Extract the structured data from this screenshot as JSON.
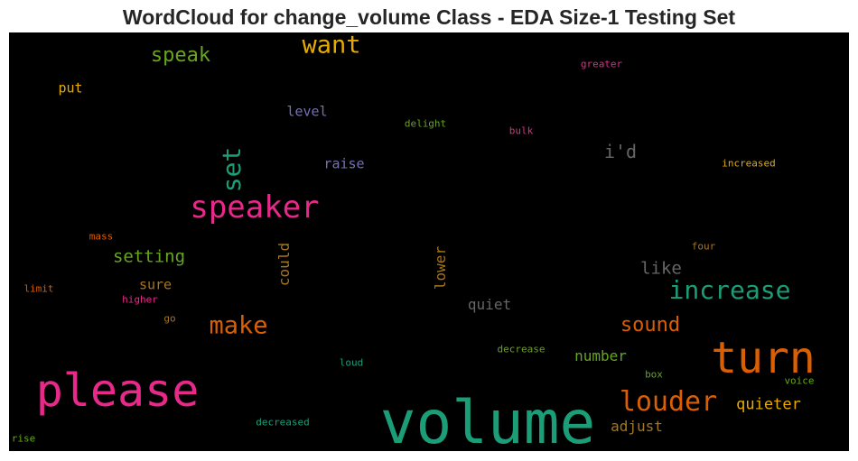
{
  "chart_data": {
    "type": "wordcloud",
    "title": "WordCloud for change_volume Class - EDA Size-1 Testing Set",
    "background": "#000000",
    "colormap": "Dark2",
    "words": [
      {
        "text": "volume",
        "weight": 1.0,
        "color": "#1b9e77",
        "orientation": "horizontal"
      },
      {
        "text": "please",
        "weight": 0.75,
        "color": "#e7298a",
        "orientation": "horizontal"
      },
      {
        "text": "turn",
        "weight": 0.72,
        "color": "#d95f02",
        "orientation": "horizontal"
      },
      {
        "text": "speaker",
        "weight": 0.5,
        "color": "#e7298a",
        "orientation": "horizontal"
      },
      {
        "text": "louder",
        "weight": 0.45,
        "color": "#d95f02",
        "orientation": "horizontal"
      },
      {
        "text": "increase",
        "weight": 0.42,
        "color": "#1b9e77",
        "orientation": "horizontal"
      },
      {
        "text": "set",
        "weight": 0.42,
        "color": "#1b9e77",
        "orientation": "vertical"
      },
      {
        "text": "make",
        "weight": 0.4,
        "color": "#d95f02",
        "orientation": "horizontal"
      },
      {
        "text": "want",
        "weight": 0.4,
        "color": "#e6ab02",
        "orientation": "horizontal"
      },
      {
        "text": "sound",
        "weight": 0.33,
        "color": "#d95f02",
        "orientation": "horizontal"
      },
      {
        "text": "speak",
        "weight": 0.32,
        "color": "#66a61e",
        "orientation": "horizontal"
      },
      {
        "text": "i'd",
        "weight": 0.3,
        "color": "#666666",
        "orientation": "horizontal"
      },
      {
        "text": "like",
        "weight": 0.29,
        "color": "#666666",
        "orientation": "horizontal"
      },
      {
        "text": "setting",
        "weight": 0.28,
        "color": "#66a61e",
        "orientation": "horizontal"
      },
      {
        "text": "quieter",
        "weight": 0.26,
        "color": "#e6ab02",
        "orientation": "horizontal"
      },
      {
        "text": "number",
        "weight": 0.25,
        "color": "#66a61e",
        "orientation": "horizontal"
      },
      {
        "text": "adjust",
        "weight": 0.25,
        "color": "#a6761d",
        "orientation": "horizontal"
      },
      {
        "text": "could",
        "weight": 0.24,
        "color": "#a6761d",
        "orientation": "vertical"
      },
      {
        "text": "lower",
        "weight": 0.24,
        "color": "#a6761d",
        "orientation": "vertical"
      },
      {
        "text": "quiet",
        "weight": 0.24,
        "color": "#666666",
        "orientation": "horizontal"
      },
      {
        "text": "raise",
        "weight": 0.23,
        "color": "#7570b3",
        "orientation": "horizontal"
      },
      {
        "text": "level",
        "weight": 0.23,
        "color": "#7570b3",
        "orientation": "horizontal"
      },
      {
        "text": "sure",
        "weight": 0.23,
        "color": "#a6761d",
        "orientation": "horizontal"
      },
      {
        "text": "put",
        "weight": 0.23,
        "color": "#e6ab02",
        "orientation": "horizontal"
      },
      {
        "text": "delight",
        "weight": 0.15,
        "color": "#66a61e",
        "orientation": "horizontal"
      },
      {
        "text": "bulk",
        "weight": 0.15,
        "color": "#e7298a",
        "orientation": "horizontal"
      },
      {
        "text": "greater",
        "weight": 0.15,
        "color": "#e7298a",
        "orientation": "horizontal"
      },
      {
        "text": "increased",
        "weight": 0.15,
        "color": "#e6ab02",
        "orientation": "horizontal"
      },
      {
        "text": "four",
        "weight": 0.15,
        "color": "#a6761d",
        "orientation": "horizontal"
      },
      {
        "text": "mass",
        "weight": 0.15,
        "color": "#d95f02",
        "orientation": "horizontal"
      },
      {
        "text": "limit",
        "weight": 0.15,
        "color": "#d95f02",
        "orientation": "horizontal"
      },
      {
        "text": "higher",
        "weight": 0.15,
        "color": "#e7298a",
        "orientation": "horizontal"
      },
      {
        "text": "go",
        "weight": 0.15,
        "color": "#a6761d",
        "orientation": "horizontal"
      },
      {
        "text": "decrease",
        "weight": 0.15,
        "color": "#66a61e",
        "orientation": "horizontal"
      },
      {
        "text": "loud",
        "weight": 0.15,
        "color": "#1b9e77",
        "orientation": "horizontal"
      },
      {
        "text": "box",
        "weight": 0.15,
        "color": "#66a61e",
        "orientation": "horizontal"
      },
      {
        "text": "voice",
        "weight": 0.15,
        "color": "#66a61e",
        "orientation": "horizontal"
      },
      {
        "text": "decreased",
        "weight": 0.15,
        "color": "#1b9e77",
        "orientation": "horizontal"
      },
      {
        "text": "rise",
        "weight": 0.15,
        "color": "#66a61e",
        "orientation": "horizontal"
      }
    ]
  }
}
